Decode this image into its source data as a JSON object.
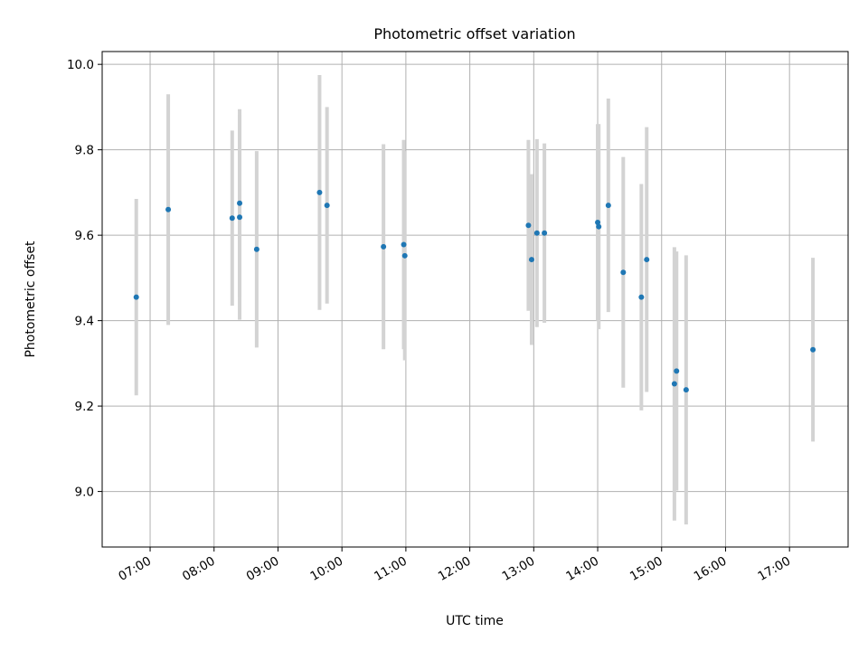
{
  "chart_data": {
    "type": "scatter",
    "title": "Photometric offset variation",
    "xlabel": "UTC time",
    "ylabel": "Photometric offset",
    "x_ticks": [
      "07:00",
      "08:00",
      "09:00",
      "10:00",
      "11:00",
      "12:00",
      "13:00",
      "14:00",
      "15:00",
      "16:00",
      "17:00"
    ],
    "y_ticks": [
      9.0,
      9.2,
      9.4,
      9.6,
      9.8,
      10.0
    ],
    "xlim": [
      "06:15",
      "17:55"
    ],
    "ylim": [
      8.87,
      10.03
    ],
    "grid": true,
    "marker_color": "#1f77b4",
    "errorbar_color": "#d3d3d3",
    "points": [
      {
        "x": "06:47",
        "y": 9.455,
        "err": 0.23
      },
      {
        "x": "07:17",
        "y": 9.66,
        "err": 0.27
      },
      {
        "x": "08:17",
        "y": 9.64,
        "err": 0.205
      },
      {
        "x": "08:24",
        "y": 9.675,
        "err": 0.22
      },
      {
        "x": "08:24",
        "y": 9.642,
        "err": 0.24
      },
      {
        "x": "08:40",
        "y": 9.567,
        "err": 0.23
      },
      {
        "x": "09:39",
        "y": 9.7,
        "err": 0.275
      },
      {
        "x": "09:46",
        "y": 9.67,
        "err": 0.23
      },
      {
        "x": "10:39",
        "y": 9.573,
        "err": 0.24
      },
      {
        "x": "10:58",
        "y": 9.578,
        "err": 0.245
      },
      {
        "x": "10:59",
        "y": 9.552,
        "err": 0.245
      },
      {
        "x": "12:55",
        "y": 9.623,
        "err": 0.2
      },
      {
        "x": "12:58",
        "y": 9.543,
        "err": 0.2
      },
      {
        "x": "13:03",
        "y": 9.605,
        "err": 0.22
      },
      {
        "x": "13:10",
        "y": 9.605,
        "err": 0.21
      },
      {
        "x": "14:00",
        "y": 9.63,
        "err": 0.23
      },
      {
        "x": "14:01",
        "y": 9.62,
        "err": 0.24
      },
      {
        "x": "14:10",
        "y": 9.67,
        "err": 0.25
      },
      {
        "x": "14:24",
        "y": 9.513,
        "err": 0.27
      },
      {
        "x": "14:41",
        "y": 9.455,
        "err": 0.265
      },
      {
        "x": "14:46",
        "y": 9.543,
        "err": 0.31
      },
      {
        "x": "15:12",
        "y": 9.252,
        "err": 0.32
      },
      {
        "x": "15:14",
        "y": 9.282,
        "err": 0.28
      },
      {
        "x": "15:23",
        "y": 9.238,
        "err": 0.315
      },
      {
        "x": "17:22",
        "y": 9.332,
        "err": 0.215
      }
    ]
  }
}
